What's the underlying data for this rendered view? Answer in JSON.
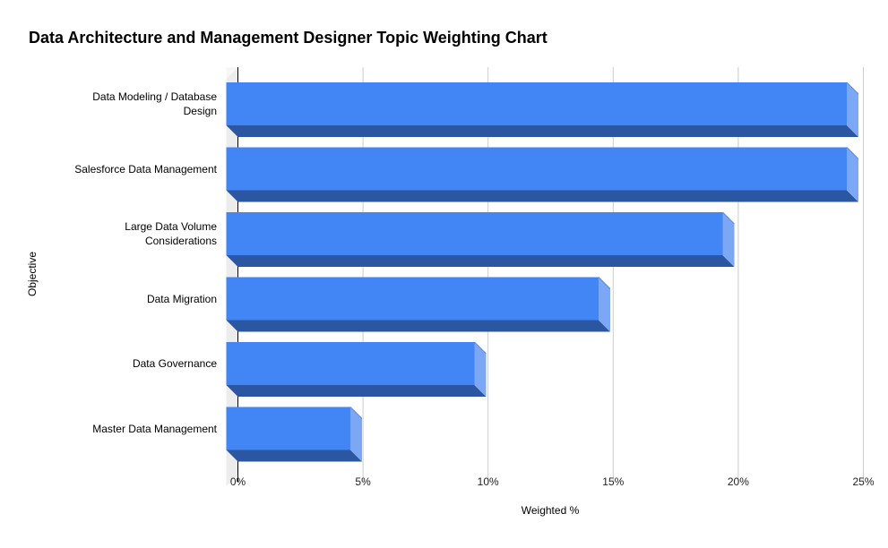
{
  "title": "Data Architecture and Management Designer Topic Weighting Chart",
  "chart_data": {
    "type": "bar",
    "orientation": "horizontal",
    "style": "3d",
    "title": "Data Architecture and Management Designer Topic Weighting Chart",
    "xlabel": "Weighted %",
    "ylabel": "Objective",
    "categories": [
      "Data Modeling / Database Design",
      "Salesforce Data Management",
      "Large Data Volume Considerations",
      "Data Migration",
      "Data Governance",
      "Master Data Management"
    ],
    "category_lines": [
      [
        "Data Modeling / Database",
        "Design"
      ],
      [
        "Salesforce Data Management"
      ],
      [
        "Large Data Volume",
        "Considerations"
      ],
      [
        "Data Migration"
      ],
      [
        "Data Governance"
      ],
      [
        "Master Data Management"
      ]
    ],
    "values": [
      25,
      25,
      20,
      15,
      10,
      5
    ],
    "unit": "%",
    "xlim": [
      0,
      25
    ],
    "xticks": [
      0,
      5,
      10,
      15,
      20,
      25
    ],
    "xtick_labels": [
      "0%",
      "5%",
      "10%",
      "15%",
      "20%",
      "25%"
    ],
    "grid": "vertical-only",
    "legend": "none",
    "colors": {
      "bar_face": "#4285F4",
      "bar_end": "#7CA7F4",
      "bar_bottom": "#2B56A2",
      "bar_edge": "#5E8BDD",
      "wall_side": "#ECECEC",
      "wall_top": "#F7F7F7",
      "grid": "#CCCCCC",
      "axis": "#000000",
      "text": "#000000",
      "tick_text": "#222222"
    }
  }
}
